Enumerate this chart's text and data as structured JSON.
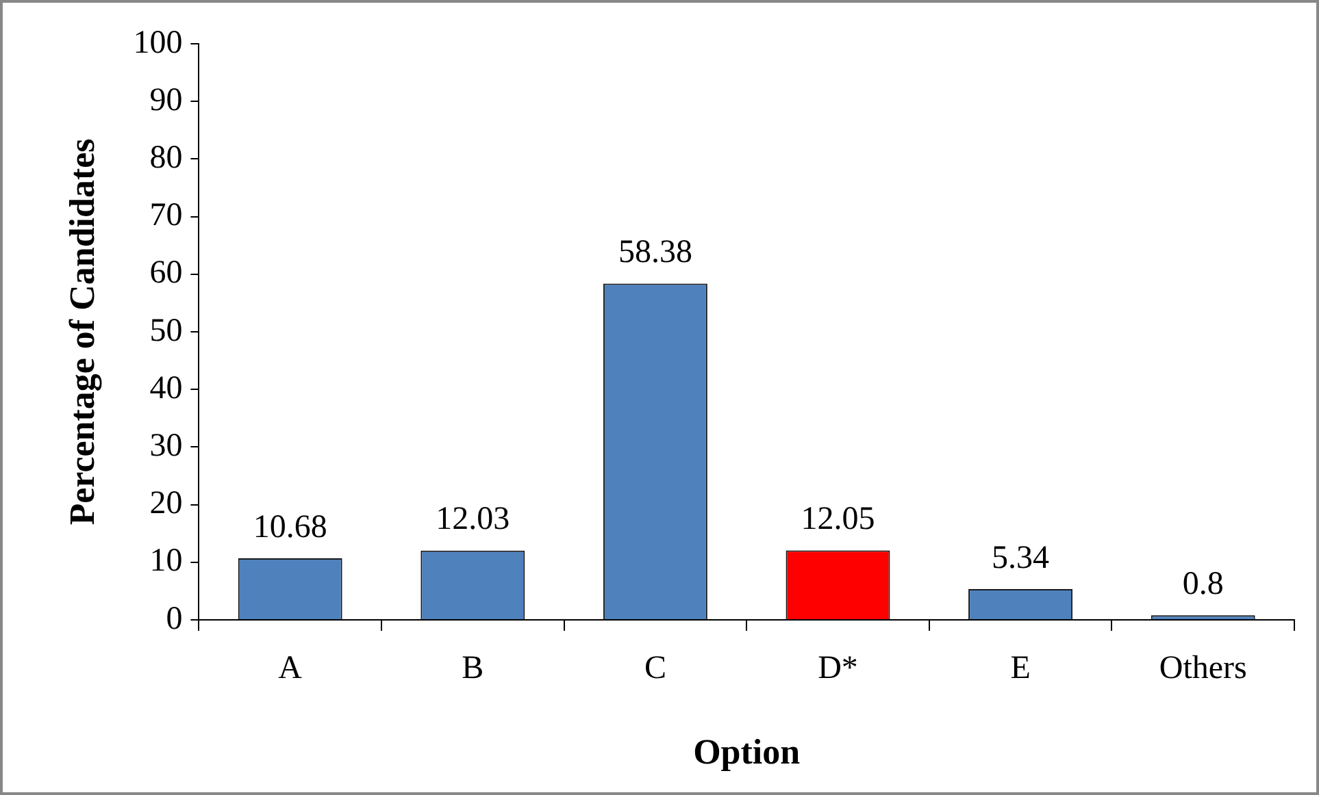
{
  "chart_data": {
    "type": "bar",
    "xlabel": "Option",
    "ylabel": "Percentage of Candidates",
    "categories": [
      "A",
      "B",
      "C",
      "D*",
      "E",
      "Others"
    ],
    "values": [
      10.68,
      12.03,
      58.38,
      12.05,
      5.34,
      0.8
    ],
    "colors": [
      "#4f81bd",
      "#4f81bd",
      "#4f81bd",
      "#ff0000",
      "#4f81bd",
      "#4f81bd"
    ],
    "ylim": [
      0,
      100
    ],
    "yticks": [
      0,
      10,
      20,
      30,
      40,
      50,
      60,
      70,
      80,
      90,
      100
    ],
    "data_labels": true,
    "grid": false,
    "legend": false
  }
}
